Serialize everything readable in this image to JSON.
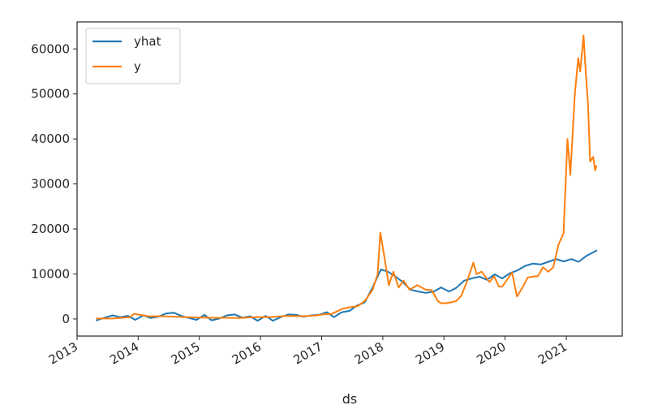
{
  "chart_data": {
    "type": "line",
    "xlabel": "ds",
    "ylabel": "",
    "xlim": [
      "2013-01-01",
      "2021-12-01"
    ],
    "ylim": [
      -3800,
      66000
    ],
    "grid": false,
    "legend_position": "top-left",
    "x_tick_labels": [
      "2013",
      "2014",
      "2015",
      "2016",
      "2017",
      "2018",
      "2019",
      "2020",
      "2021"
    ],
    "y_ticks": [
      0,
      10000,
      20000,
      30000,
      40000,
      50000,
      60000
    ],
    "y_tick_labels": [
      "0",
      "10000",
      "20000",
      "30000",
      "40000",
      "50000",
      "60000"
    ],
    "series": [
      {
        "name": "yhat",
        "color": "#1f77b4",
        "x": [
          "2013-04-28",
          "2013-06-15",
          "2013-08-01",
          "2013-09-15",
          "2013-11-01",
          "2013-12-15",
          "2014-02-01",
          "2014-03-15",
          "2014-05-01",
          "2014-06-15",
          "2014-08-01",
          "2014-09-15",
          "2014-11-01",
          "2014-12-15",
          "2015-02-01",
          "2015-03-15",
          "2015-05-01",
          "2015-06-15",
          "2015-08-01",
          "2015-09-15",
          "2015-11-01",
          "2015-12-15",
          "2016-02-01",
          "2016-03-15",
          "2016-05-01",
          "2016-06-15",
          "2016-08-01",
          "2016-09-15",
          "2016-11-01",
          "2016-12-15",
          "2017-02-01",
          "2017-03-15",
          "2017-05-01",
          "2017-06-15",
          "2017-08-01",
          "2017-09-15",
          "2017-11-01",
          "2017-12-20",
          "2018-02-01",
          "2018-03-15",
          "2018-05-01",
          "2018-06-15",
          "2018-08-01",
          "2018-09-15",
          "2018-11-01",
          "2018-12-15",
          "2019-02-01",
          "2019-03-15",
          "2019-05-01",
          "2019-06-15",
          "2019-08-01",
          "2019-09-15",
          "2019-11-01",
          "2019-12-15",
          "2020-02-01",
          "2020-03-15",
          "2020-05-01",
          "2020-06-15",
          "2020-08-01",
          "2020-09-15",
          "2020-11-01",
          "2020-12-15",
          "2021-02-01",
          "2021-03-15",
          "2021-05-01",
          "2021-06-30"
        ],
        "values": [
          -300,
          300,
          800,
          400,
          700,
          -200,
          800,
          200,
          500,
          1200,
          1400,
          700,
          200,
          -200,
          900,
          -300,
          100,
          800,
          1000,
          300,
          600,
          -400,
          700,
          -400,
          400,
          1000,
          900,
          500,
          800,
          900,
          1500,
          400,
          1500,
          1800,
          3000,
          3700,
          7000,
          11000,
          10500,
          9500,
          8200,
          6500,
          6100,
          5800,
          6100,
          7000,
          6100,
          6900,
          8500,
          9000,
          9400,
          8700,
          9900,
          9000,
          10200,
          10800,
          11800,
          12300,
          12100,
          12700,
          13300,
          12800,
          13300,
          12700,
          14000,
          15200
        ]
      },
      {
        "name": "y",
        "color": "#ff7f0e",
        "x": [
          "2013-04-28",
          "2013-08-01",
          "2013-11-15",
          "2013-12-04",
          "2014-01-15",
          "2014-03-01",
          "2014-06-01",
          "2014-09-01",
          "2014-12-01",
          "2015-03-01",
          "2015-06-01",
          "2015-09-01",
          "2015-12-01",
          "2016-03-01",
          "2016-06-15",
          "2016-09-01",
          "2016-12-01",
          "2017-01-05",
          "2017-03-01",
          "2017-05-01",
          "2017-06-15",
          "2017-08-01",
          "2017-09-15",
          "2017-11-01",
          "2017-12-01",
          "2017-12-17",
          "2018-01-05",
          "2018-02-06",
          "2018-03-05",
          "2018-04-05",
          "2018-05-05",
          "2018-06-10",
          "2018-07-25",
          "2018-09-15",
          "2018-10-20",
          "2018-11-25",
          "2018-12-15",
          "2019-01-15",
          "2019-02-15",
          "2019-03-15",
          "2019-04-15",
          "2019-05-15",
          "2019-06-26",
          "2019-07-15",
          "2019-08-15",
          "2019-09-30",
          "2019-10-28",
          "2019-11-25",
          "2019-12-15",
          "2020-01-15",
          "2020-02-12",
          "2020-03-12",
          "2020-04-15",
          "2020-05-15",
          "2020-06-15",
          "2020-07-15",
          "2020-08-15",
          "2020-09-15",
          "2020-10-15",
          "2020-11-15",
          "2020-12-15",
          "2021-01-08",
          "2021-01-25",
          "2021-02-21",
          "2021-03-13",
          "2021-03-25",
          "2021-04-14",
          "2021-04-25",
          "2021-05-10",
          "2021-05-23",
          "2021-06-10",
          "2021-06-22",
          "2021-06-30"
        ],
        "values": [
          100,
          100,
          400,
          1100,
          900,
          600,
          600,
          450,
          350,
          250,
          250,
          230,
          420,
          420,
          700,
          600,
          780,
          1000,
          1100,
          2200,
          2600,
          2800,
          4000,
          6500,
          10000,
          19200,
          15000,
          7500,
          10500,
          7000,
          8500,
          6500,
          7500,
          6500,
          6400,
          4000,
          3500,
          3500,
          3700,
          4000,
          5200,
          8000,
          12500,
          10000,
          10500,
          8200,
          9500,
          7200,
          7200,
          8800,
          10300,
          5000,
          7000,
          9200,
          9400,
          9500,
          11500,
          10500,
          11500,
          16500,
          19000,
          40000,
          32000,
          50000,
          58000,
          55000,
          63000,
          56000,
          48000,
          35000,
          36000,
          33000,
          34000
        ]
      }
    ]
  }
}
